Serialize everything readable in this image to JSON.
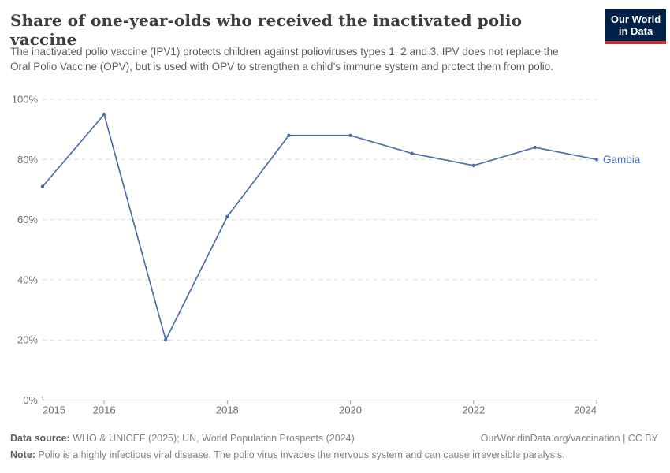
{
  "header": {
    "title": "Share of one-year-olds who received the inactivated polio vaccine",
    "subtitle": "The inactivated polio vaccine (IPV1) protects children against polioviruses types 1, 2 and 3. IPV does not replace the Oral Polio Vaccine (OPV), but is used with OPV to strengthen a child’s immune system and protect them from polio."
  },
  "logo": {
    "line1": "Our World",
    "line2": "in Data",
    "bg_color": "#002147",
    "stripe_color": "#cf2f33"
  },
  "chart_data": {
    "type": "line",
    "title": "Share of one-year-olds who received the inactivated polio vaccine",
    "x": [
      2015,
      2016,
      2017,
      2018,
      2019,
      2020,
      2021,
      2022,
      2023,
      2024
    ],
    "series": [
      {
        "name": "Gambia",
        "values": [
          71,
          95,
          20,
          61,
          88,
          88,
          82,
          78,
          84,
          80
        ]
      }
    ],
    "end_label": "Gambia",
    "ylim": [
      0,
      100
    ],
    "yticks": [
      0,
      20,
      40,
      60,
      80,
      100
    ],
    "ytick_suffix": "%",
    "xticks": [
      2015,
      2016,
      2018,
      2020,
      2022,
      2024
    ],
    "grid": "horizontal-dashed",
    "legend_position": "end-of-line",
    "colors": {
      "line": "#4C6EA8",
      "grid": "#dadada",
      "axis": "#a3a3a3",
      "tick_label": "#6e6e6e"
    }
  },
  "footer": {
    "source_label": "Data source:",
    "source_text": " WHO & UNICEF (2025); UN, World Population Prospects (2024)",
    "attribution": "OurWorldinData.org/vaccination | CC BY",
    "note_label": "Note:",
    "note_text": " Polio is a highly infectious viral disease. The polio virus invades the nervous system and can cause irreversible paralysis."
  }
}
